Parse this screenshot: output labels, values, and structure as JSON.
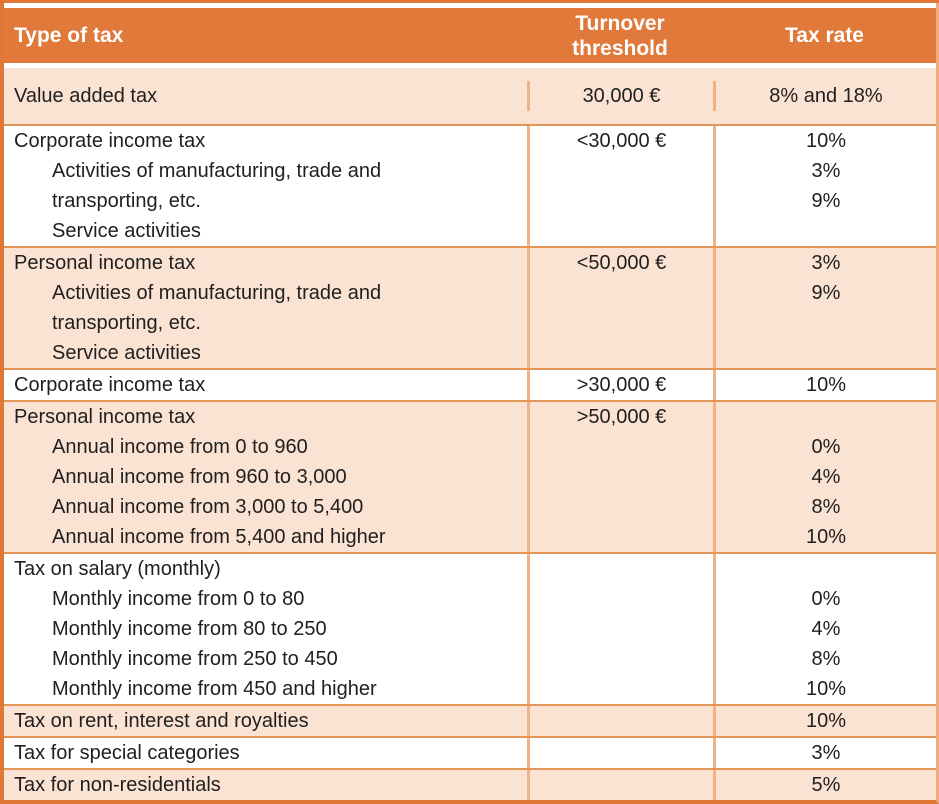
{
  "header": {
    "type": "Type of tax",
    "threshold_line1": "Turnover",
    "threshold_line2": "threshold",
    "rate": "Tax rate"
  },
  "rows": [
    {
      "type": [
        "Value added tax"
      ],
      "threshold": [
        "30,000 €"
      ],
      "rate": [
        "8% and 18%"
      ]
    },
    {
      "type": [
        "Corporate income tax",
        "Activities of manufacturing, trade and",
        "transporting, etc.",
        "Service activities"
      ],
      "threshold": [
        "<30,000 €",
        "",
        "",
        ""
      ],
      "rate": [
        "10%",
        "3%",
        "9%",
        ""
      ]
    },
    {
      "type": [
        "Personal income tax",
        "Activities of manufacturing, trade and",
        "transporting, etc.",
        "Service activities"
      ],
      "threshold": [
        "<50,000 €",
        "",
        "",
        ""
      ],
      "rate": [
        "3%",
        "9%",
        "",
        ""
      ]
    },
    {
      "type": [
        "Corporate income tax"
      ],
      "threshold": [
        ">30,000 €"
      ],
      "rate": [
        "10%"
      ]
    },
    {
      "type": [
        "Personal income tax",
        "Annual income from 0 to 960",
        "Annual income from 960 to 3,000",
        "Annual income from 3,000 to 5,400",
        "Annual income from 5,400 and higher"
      ],
      "threshold": [
        ">50,000 €",
        "",
        "",
        "",
        ""
      ],
      "rate": [
        "",
        "0%",
        "4%",
        "8%",
        "10%"
      ]
    },
    {
      "type": [
        "Tax on salary (monthly)",
        "Monthly income from 0 to 80",
        "Monthly income from 80 to 250",
        "Monthly income from 250 to 450",
        "Monthly income from 450 and higher"
      ],
      "threshold": [
        "",
        "",
        "",
        "",
        ""
      ],
      "rate": [
        "",
        "0%",
        "4%",
        "8%",
        "10%"
      ]
    },
    {
      "type": [
        "Tax on rent, interest and royalties"
      ],
      "threshold": [
        ""
      ],
      "rate": [
        "10%"
      ]
    },
    {
      "type": [
        "Tax for special categories"
      ],
      "threshold": [
        ""
      ],
      "rate": [
        "3%"
      ]
    },
    {
      "type": [
        "Tax for non-residentials"
      ],
      "threshold": [
        ""
      ],
      "rate": [
        "5%"
      ]
    }
  ],
  "colors": {
    "header_bg": "#E0793A",
    "row_peach": "#FBE3D3",
    "row_white": "#FFFFFF",
    "grid_vertical": "#F0B186",
    "grid_horizontal": "#E49659",
    "outer_border": "#DF7836",
    "outer_border_right": "#F0AD80",
    "text": "#1F1F1F",
    "header_text": "#FFFFFF"
  }
}
